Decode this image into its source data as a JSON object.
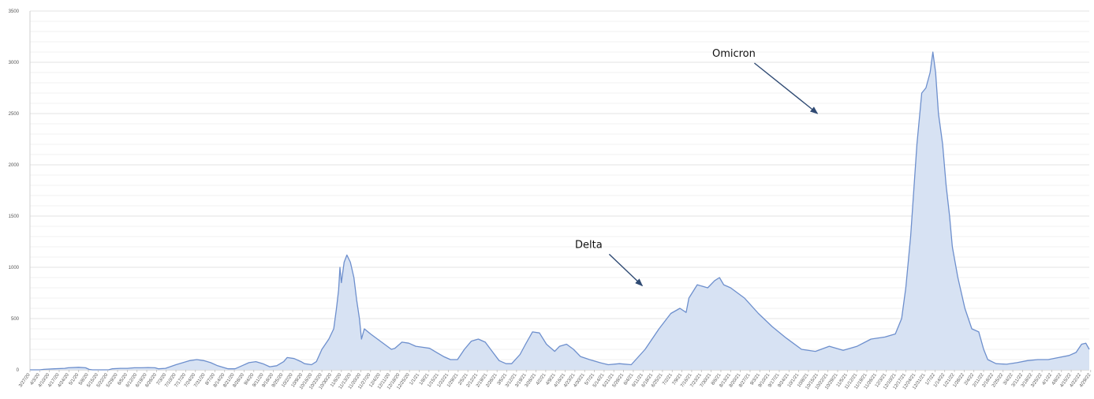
{
  "chart_data": {
    "type": "area",
    "title": "",
    "xlabel": "",
    "ylabel": "",
    "ylim": [
      0,
      3500
    ],
    "yticks": [
      0,
      500,
      1000,
      1500,
      2000,
      2500,
      3000,
      3500
    ],
    "grid": true,
    "color": "#6d8fcd",
    "fill_color": "#d7e2f3",
    "xtick_labels": [
      "3/27/20",
      "4/3/20",
      "4/10/20",
      "4/17/20",
      "4/24/20",
      "5/1/20",
      "5/8/20",
      "5/15/20",
      "5/22/20",
      "5/29/20",
      "6/5/20",
      "6/12/20",
      "6/19/20",
      "6/26/20",
      "7/3/20",
      "7/10/20",
      "7/17/20",
      "7/24/20",
      "7/31/20",
      "8/7/20",
      "8/14/20",
      "8/21/20",
      "8/28/20",
      "9/4/20",
      "9/11/20",
      "9/18/20",
      "9/25/20",
      "10/2/20",
      "10/9/20",
      "10/16/20",
      "10/23/20",
      "10/30/20",
      "11/6/20",
      "11/13/20",
      "11/20/20",
      "11/27/20",
      "12/4/20",
      "12/11/20",
      "12/18/20",
      "12/25/20",
      "1/1/21",
      "1/8/21",
      "1/15/21",
      "1/22/21",
      "1/29/21",
      "2/5/21",
      "2/12/21",
      "2/19/21",
      "2/26/21",
      "3/5/21",
      "3/12/21",
      "3/19/21",
      "3/26/21",
      "4/2/21",
      "4/9/21",
      "4/16/21",
      "4/23/21",
      "4/30/21",
      "5/7/21",
      "5/14/21",
      "5/21/21",
      "5/28/21",
      "6/4/21",
      "6/11/21",
      "6/18/21",
      "6/25/21",
      "7/2/21",
      "7/9/21",
      "7/16/21",
      "7/23/21",
      "7/30/21",
      "8/6/21",
      "8/13/21",
      "8/20/21",
      "8/27/21",
      "9/3/21",
      "9/10/21",
      "9/17/21",
      "9/24/21",
      "10/1/21",
      "10/8/21",
      "10/15/21",
      "10/22/21",
      "10/29/21",
      "11/5/21",
      "11/12/21",
      "11/19/21",
      "11/26/21",
      "12/3/21",
      "12/10/21",
      "12/17/21",
      "12/24/21",
      "12/31/21",
      "1/7/22",
      "1/14/22",
      "1/21/22",
      "1/28/22",
      "2/4/22",
      "2/11/22",
      "2/18/22",
      "2/25/22",
      "3/4/22",
      "3/11/22",
      "3/18/22",
      "3/25/22",
      "4/1/22",
      "4/8/22",
      "4/15/22",
      "4/22/22",
      "4/29/22"
    ],
    "x_start": "2020-03-27",
    "series": [
      {
        "values": [
          [
            0,
            0
          ],
          [
            14,
            0
          ],
          [
            20,
            5
          ],
          [
            35,
            10
          ],
          [
            50,
            15
          ],
          [
            55,
            20
          ],
          [
            70,
            25
          ],
          [
            80,
            20
          ],
          [
            85,
            5
          ],
          [
            90,
            0
          ],
          [
            113,
            0
          ],
          [
            118,
            10
          ],
          [
            130,
            15
          ],
          [
            140,
            15
          ],
          [
            150,
            20
          ],
          [
            160,
            20
          ],
          [
            170,
            22
          ],
          [
            180,
            20
          ],
          [
            185,
            10
          ],
          [
            195,
            15
          ],
          [
            210,
            50
          ],
          [
            220,
            70
          ],
          [
            230,
            90
          ],
          [
            240,
            100
          ],
          [
            250,
            90
          ],
          [
            260,
            70
          ],
          [
            270,
            40
          ],
          [
            285,
            10
          ],
          [
            295,
            10
          ],
          [
            305,
            40
          ],
          [
            315,
            70
          ],
          [
            325,
            80
          ],
          [
            335,
            60
          ],
          [
            345,
            30
          ],
          [
            355,
            40
          ],
          [
            365,
            80
          ],
          [
            370,
            120
          ],
          [
            380,
            110
          ],
          [
            390,
            80
          ],
          [
            395,
            60
          ],
          [
            405,
            50
          ],
          [
            412,
            80
          ],
          [
            420,
            200
          ],
          [
            430,
            300
          ],
          [
            437,
            400
          ],
          [
            441,
            600
          ],
          [
            444,
            780
          ],
          [
            446,
            1000
          ],
          [
            448,
            850
          ],
          [
            452,
            1050
          ],
          [
            456,
            1120
          ],
          [
            461,
            1050
          ],
          [
            466,
            900
          ],
          [
            470,
            680
          ],
          [
            474,
            500
          ],
          [
            477,
            300
          ],
          [
            481,
            400
          ],
          [
            490,
            350
          ],
          [
            500,
            300
          ],
          [
            510,
            250
          ],
          [
            520,
            200
          ],
          [
            525,
            210
          ],
          [
            535,
            270
          ],
          [
            545,
            260
          ],
          [
            555,
            230
          ],
          [
            565,
            220
          ],
          [
            575,
            210
          ],
          [
            585,
            170
          ],
          [
            595,
            130
          ],
          [
            605,
            100
          ],
          [
            615,
            100
          ],
          [
            625,
            200
          ],
          [
            635,
            280
          ],
          [
            645,
            300
          ],
          [
            655,
            270
          ],
          [
            665,
            180
          ],
          [
            675,
            90
          ],
          [
            685,
            60
          ],
          [
            693,
            60
          ],
          [
            705,
            150
          ],
          [
            713,
            250
          ],
          [
            723,
            370
          ],
          [
            733,
            360
          ],
          [
            743,
            250
          ],
          [
            755,
            180
          ],
          [
            762,
            230
          ],
          [
            772,
            250
          ],
          [
            782,
            200
          ],
          [
            792,
            130
          ],
          [
            805,
            100
          ],
          [
            820,
            70
          ],
          [
            832,
            50
          ],
          [
            848,
            60
          ],
          [
            865,
            50
          ],
          [
            885,
            200
          ],
          [
            905,
            400
          ],
          [
            922,
            550
          ],
          [
            935,
            600
          ],
          [
            944,
            560
          ],
          [
            948,
            700
          ],
          [
            960,
            830
          ],
          [
            975,
            800
          ],
          [
            985,
            870
          ],
          [
            992,
            900
          ],
          [
            998,
            830
          ],
          [
            1008,
            800
          ],
          [
            1028,
            700
          ],
          [
            1048,
            550
          ],
          [
            1068,
            420
          ],
          [
            1088,
            310
          ],
          [
            1110,
            200
          ],
          [
            1130,
            180
          ],
          [
            1150,
            230
          ],
          [
            1170,
            190
          ],
          [
            1190,
            230
          ],
          [
            1210,
            300
          ],
          [
            1230,
            320
          ],
          [
            1245,
            350
          ],
          [
            1254,
            500
          ],
          [
            1260,
            800
          ],
          [
            1267,
            1300
          ],
          [
            1276,
            2200
          ],
          [
            1283,
            2700
          ],
          [
            1289,
            2750
          ],
          [
            1295,
            2900
          ],
          [
            1299,
            3100
          ],
          [
            1303,
            2900
          ],
          [
            1307,
            2500
          ],
          [
            1313,
            2200
          ],
          [
            1318,
            1800
          ],
          [
            1323,
            1500
          ],
          [
            1327,
            1200
          ],
          [
            1335,
            900
          ],
          [
            1345,
            600
          ],
          [
            1355,
            400
          ],
          [
            1365,
            370
          ],
          [
            1372,
            200
          ],
          [
            1378,
            100
          ],
          [
            1390,
            60
          ],
          [
            1405,
            55
          ],
          [
            1420,
            70
          ],
          [
            1435,
            90
          ],
          [
            1450,
            100
          ],
          [
            1465,
            100
          ],
          [
            1480,
            120
          ],
          [
            1495,
            140
          ],
          [
            1505,
            170
          ],
          [
            1513,
            250
          ],
          [
            1519,
            260
          ],
          [
            1524,
            200
          ]
        ]
      }
    ],
    "annotations": [
      {
        "text": "Delta",
        "point_to": [
          881,
          820
        ]
      },
      {
        "text": "Omicron",
        "point_to": [
          1133,
          2500
        ]
      }
    ]
  }
}
